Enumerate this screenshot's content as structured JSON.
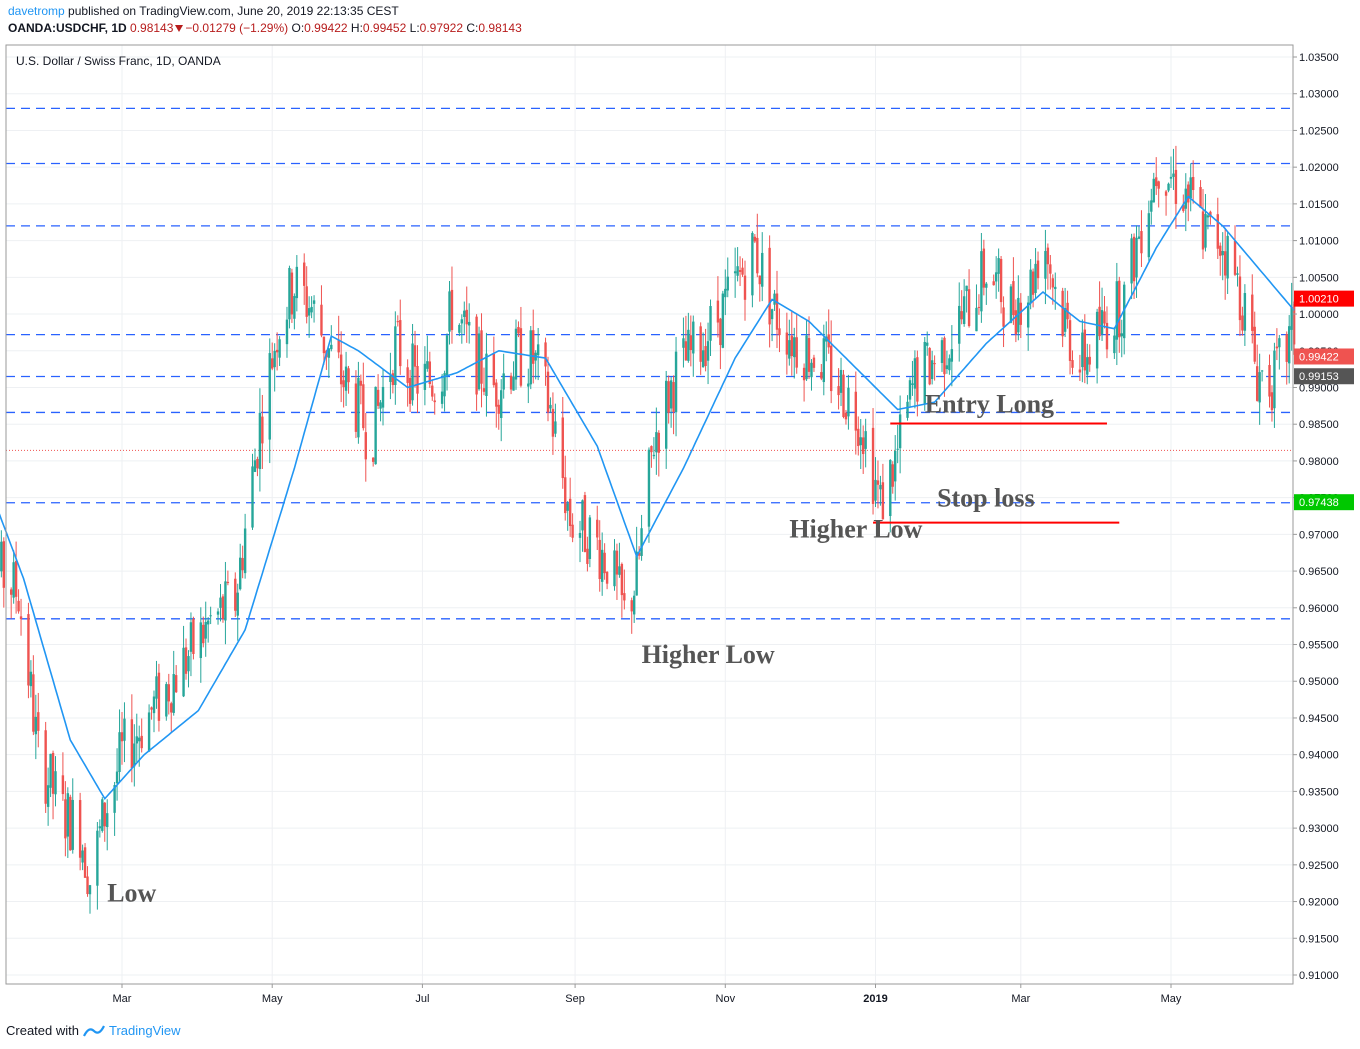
{
  "header": {
    "user": "davetromp",
    "published": "published on TradingView.com, June 20, 2019 22:13:35 CEST",
    "symbol": "OANDA:USDCHF, 1D",
    "last": "0.98143",
    "change": "−0.01279 (−1.29%)",
    "o_label": "O:",
    "o": "0.99422",
    "h_label": "H:",
    "h": "0.99452",
    "l_label": "L:",
    "l": "0.97922",
    "c_label": "C:",
    "c": "0.98143"
  },
  "footer": {
    "created": "Created with",
    "brand": "TradingView"
  },
  "colors": {
    "up": "#26a69a",
    "down": "#ef5350",
    "ma": "#2196f3",
    "level": "#2962ff",
    "annot_line": "#ff0000",
    "annot_text": "#555555"
  },
  "chart_data": {
    "type": "candlestick",
    "title": "U.S. Dollar / Swiss Franc, 1D, OANDA",
    "y_ticks": [
      "1.03500",
      "1.03000",
      "1.02500",
      "1.02000",
      "1.01500",
      "1.01000",
      "1.00500",
      "1.00000",
      "0.99500",
      "0.99000",
      "0.98500",
      "0.98000",
      "0.97500",
      "0.97000",
      "0.96500",
      "0.96000",
      "0.95500",
      "0.95000",
      "0.94500",
      "0.94000",
      "0.93500",
      "0.93000",
      "0.92500",
      "0.92000",
      "0.91500",
      "0.91000"
    ],
    "y_range": [
      0.9085,
      1.037
    ],
    "x_range": [
      "2018-01-01",
      "2019-06-21"
    ],
    "x_ticks": [
      {
        "label": "Mar",
        "date": "2018-03-01",
        "bold": false
      },
      {
        "label": "May",
        "date": "2018-05-01",
        "bold": false
      },
      {
        "label": "Jul",
        "date": "2018-07-01",
        "bold": false
      },
      {
        "label": "Sep",
        "date": "2018-09-01",
        "bold": false
      },
      {
        "label": "Nov",
        "date": "2018-11-01",
        "bold": false
      },
      {
        "label": "2019",
        "date": "2019-01-01",
        "bold": true
      },
      {
        "label": "Mar",
        "date": "2019-03-01",
        "bold": false
      },
      {
        "label": "May",
        "date": "2019-05-01",
        "bold": false
      }
    ],
    "price_anchors": [
      [
        "2018-01-01",
        0.971
      ],
      [
        "2018-01-10",
        0.965
      ],
      [
        "2018-01-18",
        0.962
      ],
      [
        "2018-01-26",
        0.94
      ],
      [
        "2018-02-05",
        0.932
      ],
      [
        "2018-02-12",
        0.93
      ],
      [
        "2018-02-16",
        0.923
      ],
      [
        "2018-02-22",
        0.932
      ],
      [
        "2018-03-01",
        0.94
      ],
      [
        "2018-03-15",
        0.947
      ],
      [
        "2018-03-25",
        0.952
      ],
      [
        "2018-04-06",
        0.958
      ],
      [
        "2018-04-16",
        0.961
      ],
      [
        "2018-04-26",
        0.985
      ],
      [
        "2018-05-03",
        0.998
      ],
      [
        "2018-05-10",
        1.004
      ],
      [
        "2018-05-17",
        1.001
      ],
      [
        "2018-05-25",
        0.994
      ],
      [
        "2018-06-05",
        0.987
      ],
      [
        "2018-06-10",
        0.983
      ],
      [
        "2018-06-20",
        0.996
      ],
      [
        "2018-06-28",
        0.991
      ],
      [
        "2018-07-08",
        0.991
      ],
      [
        "2018-07-13",
        1.001
      ],
      [
        "2018-07-22",
        0.994
      ],
      [
        "2018-07-30",
        0.99
      ],
      [
        "2018-08-08",
        0.994
      ],
      [
        "2018-08-15",
        0.994
      ],
      [
        "2018-08-22",
        0.987
      ],
      [
        "2018-08-30",
        0.972
      ],
      [
        "2018-09-07",
        0.97
      ],
      [
        "2018-09-15",
        0.966
      ],
      [
        "2018-09-21",
        0.959
      ],
      [
        "2018-09-26",
        0.964
      ],
      [
        "2018-10-03",
        0.983
      ],
      [
        "2018-10-12",
        0.992
      ],
      [
        "2018-10-22",
        0.996
      ],
      [
        "2018-11-01",
        1.001
      ],
      [
        "2018-11-07",
        1.005
      ],
      [
        "2018-11-13",
        1.009
      ],
      [
        "2018-11-20",
        1.001
      ],
      [
        "2018-11-30",
        0.996
      ],
      [
        "2018-12-10",
        0.994
      ],
      [
        "2018-12-18",
        0.99
      ],
      [
        "2018-12-26",
        0.986
      ],
      [
        "2019-01-03",
        0.974
      ],
      [
        "2019-01-10",
        0.981
      ],
      [
        "2019-01-17",
        0.991
      ],
      [
        "2019-01-28",
        0.995
      ],
      [
        "2019-02-06",
        1.0
      ],
      [
        "2019-02-15",
        1.006
      ],
      [
        "2019-02-25",
        1.001
      ],
      [
        "2019-03-05",
        1.004
      ],
      [
        "2019-03-10",
        1.011
      ],
      [
        "2019-03-16",
        1.002
      ],
      [
        "2019-03-25",
        0.993
      ],
      [
        "2019-04-03",
        0.998
      ],
      [
        "2019-04-12",
        1.002
      ],
      [
        "2019-04-20",
        1.014
      ],
      [
        "2019-04-26",
        1.021
      ],
      [
        "2019-05-03",
        1.018
      ],
      [
        "2019-05-08",
        1.016
      ],
      [
        "2019-05-15",
        1.011
      ],
      [
        "2019-05-22",
        1.01
      ],
      [
        "2019-05-30",
        1.002
      ],
      [
        "2019-06-05",
        0.992
      ],
      [
        "2019-06-12",
        0.991
      ],
      [
        "2019-06-20",
        0.998
      ]
    ],
    "ma_anchors": [
      [
        "2018-01-01",
        0.981
      ],
      [
        "2018-01-20",
        0.964
      ],
      [
        "2018-02-08",
        0.942
      ],
      [
        "2018-02-22",
        0.934
      ],
      [
        "2018-03-10",
        0.94
      ],
      [
        "2018-04-01",
        0.946
      ],
      [
        "2018-04-20",
        0.957
      ],
      [
        "2018-05-10",
        0.979
      ],
      [
        "2018-05-25",
        0.997
      ],
      [
        "2018-06-05",
        0.995
      ],
      [
        "2018-06-25",
        0.99
      ],
      [
        "2018-07-15",
        0.992
      ],
      [
        "2018-08-01",
        0.995
      ],
      [
        "2018-08-20",
        0.994
      ],
      [
        "2018-09-10",
        0.982
      ],
      [
        "2018-09-26",
        0.967
      ],
      [
        "2018-10-15",
        0.979
      ],
      [
        "2018-11-05",
        0.994
      ],
      [
        "2018-11-20",
        1.002
      ],
      [
        "2018-12-05",
        0.999
      ],
      [
        "2018-12-20",
        0.994
      ],
      [
        "2019-01-10",
        0.987
      ],
      [
        "2019-01-25",
        0.988
      ],
      [
        "2019-02-15",
        0.996
      ],
      [
        "2019-03-10",
        1.003
      ],
      [
        "2019-03-25",
        0.999
      ],
      [
        "2019-04-08",
        0.998
      ],
      [
        "2019-04-25",
        1.009
      ],
      [
        "2019-05-08",
        1.016
      ],
      [
        "2019-05-22",
        1.012
      ],
      [
        "2019-06-20",
        1.0005
      ]
    ],
    "levels": [
      1.028,
      1.0205,
      1.012,
      0.9972,
      0.9915,
      0.9866,
      0.9743,
      0.9585
    ],
    "red_dotted": 0.98143,
    "price_labels": [
      {
        "value": 1.0021,
        "text": "1.00210",
        "color": "#ff0000"
      },
      {
        "value": 0.99422,
        "text": "0.99422",
        "color": "#ef5350"
      },
      {
        "value": 0.99153,
        "text": "0.99153",
        "color": "#555555"
      },
      {
        "value": 0.97438,
        "text": "0.97438",
        "color": "#00c800"
      }
    ],
    "annotation_lines": [
      {
        "from": "2019-01-07",
        "to": "2019-04-05",
        "y": 0.9851
      },
      {
        "from": "2018-12-31",
        "to": "2019-04-10",
        "y": 0.9716
      }
    ],
    "annotations": [
      {
        "text": "Low",
        "date": "2018-02-23",
        "y": 0.92
      },
      {
        "text": "Higher Low",
        "date": "2018-09-28",
        "y": 0.9525
      },
      {
        "text": "Higher Low",
        "date": "2018-11-27",
        "y": 0.9696
      },
      {
        "text": "Entry Long",
        "date": "2019-01-21",
        "y": 0.9866
      },
      {
        "text": "Stop loss",
        "date": "2019-01-26",
        "y": 0.9738
      }
    ]
  }
}
